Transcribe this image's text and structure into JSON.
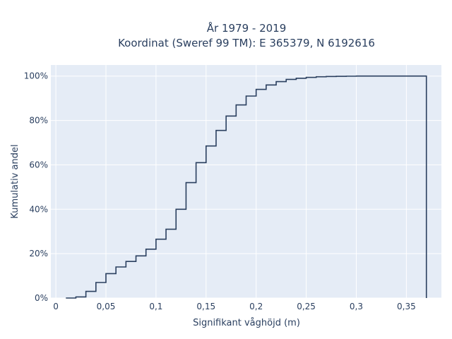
{
  "chart_data": {
    "type": "line",
    "subtype": "step-ecdf",
    "title_line1": "År 1979 - 2019",
    "title_line2": "Koordinat (Sweref 99 TM): E 365379, N 6192616",
    "xlabel": "Signifikant våghöjd (m)",
    "ylabel": "Kumulativ andel",
    "xlim": [
      -0.005,
      0.385
    ],
    "ylim": [
      0,
      1.05
    ],
    "grid": true,
    "colors": {
      "plot_bg": "#e5ecf6",
      "line": "#2a3f5f",
      "grid": "#ffffff",
      "text": "#2a3f5f"
    },
    "x_ticks": [
      {
        "value": 0,
        "label": "0"
      },
      {
        "value": 0.05,
        "label": "0,05"
      },
      {
        "value": 0.1,
        "label": "0,1"
      },
      {
        "value": 0.15,
        "label": "0,15"
      },
      {
        "value": 0.2,
        "label": "0,2"
      },
      {
        "value": 0.25,
        "label": "0,25"
      },
      {
        "value": 0.3,
        "label": "0,3"
      },
      {
        "value": 0.35,
        "label": "0,35"
      }
    ],
    "y_ticks": [
      {
        "value": 0,
        "label": "0%"
      },
      {
        "value": 0.2,
        "label": "20%"
      },
      {
        "value": 0.4,
        "label": "40%"
      },
      {
        "value": 0.6,
        "label": "60%"
      },
      {
        "value": 0.8,
        "label": "80%"
      },
      {
        "value": 1.0,
        "label": "100%"
      }
    ],
    "series": [
      {
        "x": [
          0.01,
          0.02,
          0.03,
          0.04,
          0.05,
          0.06,
          0.07,
          0.08,
          0.09,
          0.1,
          0.11,
          0.12,
          0.13,
          0.14,
          0.15,
          0.16,
          0.17,
          0.18,
          0.19,
          0.2,
          0.21,
          0.22,
          0.23,
          0.24,
          0.25,
          0.26,
          0.27,
          0.28,
          0.29,
          0.3,
          0.31,
          0.37
        ],
        "y": [
          0.0,
          0.005,
          0.03,
          0.07,
          0.11,
          0.14,
          0.165,
          0.19,
          0.22,
          0.265,
          0.31,
          0.4,
          0.52,
          0.61,
          0.685,
          0.755,
          0.82,
          0.87,
          0.91,
          0.94,
          0.96,
          0.975,
          0.985,
          0.99,
          0.994,
          0.997,
          0.998,
          0.999,
          0.9995,
          1.0,
          1.0,
          0.0
        ]
      }
    ]
  }
}
